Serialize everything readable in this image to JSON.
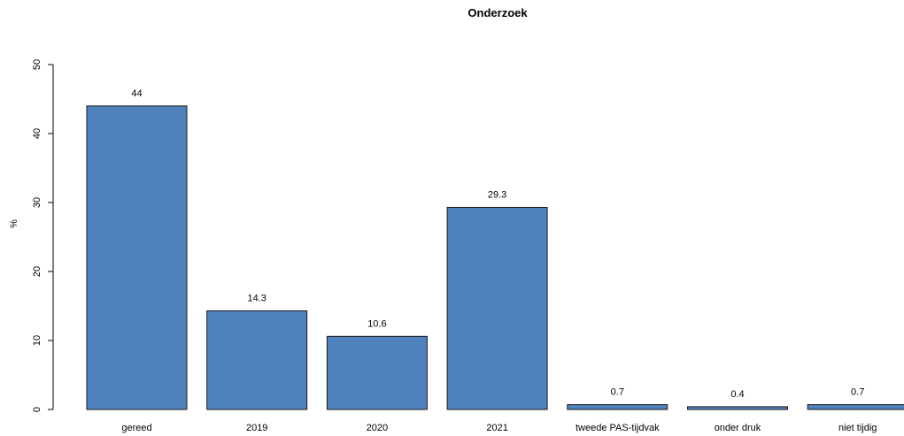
{
  "chart_data": {
    "type": "bar",
    "title": "Onderzoek",
    "xlabel": "",
    "ylabel": "%",
    "ylim": [
      0,
      50
    ],
    "yticks": [
      "0",
      "10",
      "20",
      "30",
      "40",
      "50"
    ],
    "categories": [
      "gereed",
      "2019",
      "2020",
      "2021",
      "tweede PAS-tijdvak",
      "onder druk",
      "niet tijdig"
    ],
    "values": [
      44,
      14.3,
      10.6,
      29.3,
      0.7,
      0.4,
      0.7
    ],
    "value_labels": [
      "44",
      "14.3",
      "10.6",
      "29.3",
      "0.7",
      "0.4",
      "0.7"
    ],
    "bar_color": "#4f81bd",
    "bar_border_color": "#1a1a1a",
    "grid": false,
    "legend": "none"
  }
}
